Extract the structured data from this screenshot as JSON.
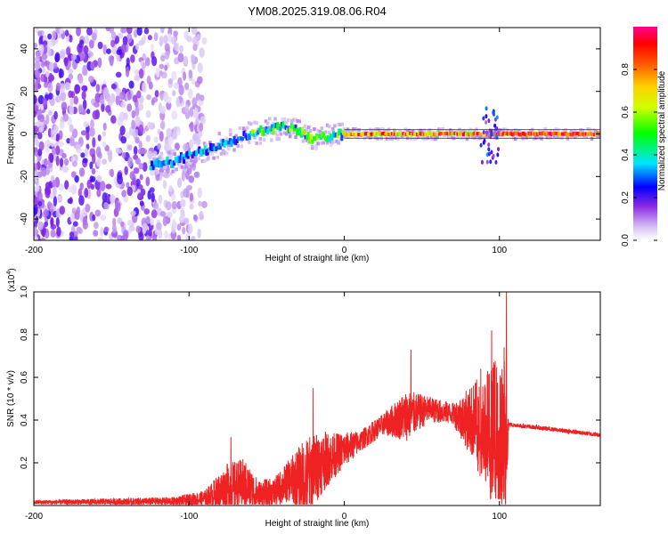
{
  "title": "YM08.2025.319.08.06.R04",
  "chart_data": [
    {
      "type": "heatmap",
      "xlabel": "Height of straight line (km)",
      "ylabel": "Frequency (Hz)",
      "xlim": [
        -200,
        165
      ],
      "ylim": [
        -50,
        50
      ],
      "xticks": [
        -200,
        -100,
        0,
        100
      ],
      "yticks": [
        -40,
        -20,
        0,
        20,
        40
      ],
      "colorbar": {
        "label": "Normalized spectral amplitude",
        "range": [
          0,
          1
        ],
        "ticks": [
          "0.0",
          "0.2",
          "0.4",
          "0.6",
          "0.8"
        ],
        "colormap": [
          "#ffffff",
          "#c9a8f2",
          "#7a00e0",
          "#0000ff",
          "#00e0ff",
          "#00ff00",
          "#ffff00",
          "#ff8000",
          "#ff0000",
          "#ff00a0"
        ]
      },
      "ridge": [
        {
          "x": -125,
          "f": -15
        },
        {
          "x": -110,
          "f": -13
        },
        {
          "x": -95,
          "f": -9
        },
        {
          "x": -80,
          "f": -5
        },
        {
          "x": -65,
          "f": -1
        },
        {
          "x": -50,
          "f": 2
        },
        {
          "x": -40,
          "f": 3.5
        },
        {
          "x": -30,
          "f": 2
        },
        {
          "x": -25,
          "f": -1
        },
        {
          "x": -20,
          "f": -2.5
        },
        {
          "x": -10,
          "f": -1
        },
        {
          "x": 0,
          "f": 0
        },
        {
          "x": 50,
          "f": 0
        },
        {
          "x": 90,
          "f": 0
        },
        {
          "x": 100,
          "f": 0
        },
        {
          "x": 165,
          "f": 0
        }
      ]
    },
    {
      "type": "line",
      "xlabel": "Height of straight line (km)",
      "ylabel": "SNR (10 * v/v)",
      "yscale_label": "(x10",
      "yscale_exp": "4",
      "yscale_close": ")",
      "xlim": [
        -200,
        165
      ],
      "ylim": [
        0,
        1.0
      ],
      "xticks": [
        -200,
        -100,
        0,
        100
      ],
      "yticks": [
        "0.2",
        "0.4",
        "0.6",
        "0.8",
        "1.0"
      ],
      "color": "#ee2222",
      "envelope": [
        {
          "x": -200,
          "base": 0.015,
          "amp": 0.01
        },
        {
          "x": -110,
          "base": 0.02,
          "amp": 0.02
        },
        {
          "x": -90,
          "base": 0.03,
          "amp": 0.04
        },
        {
          "x": -75,
          "base": 0.08,
          "amp": 0.12
        },
        {
          "x": -65,
          "base": 0.1,
          "amp": 0.12
        },
        {
          "x": -55,
          "base": 0.05,
          "amp": 0.07
        },
        {
          "x": -45,
          "base": 0.06,
          "amp": 0.07
        },
        {
          "x": -35,
          "base": 0.12,
          "amp": 0.1
        },
        {
          "x": -25,
          "base": 0.12,
          "amp": 0.2
        },
        {
          "x": -15,
          "base": 0.2,
          "amp": 0.15
        },
        {
          "x": -5,
          "base": 0.24,
          "amp": 0.1
        },
        {
          "x": 10,
          "base": 0.3,
          "amp": 0.05
        },
        {
          "x": 25,
          "base": 0.38,
          "amp": 0.05
        },
        {
          "x": 40,
          "base": 0.42,
          "amp": 0.12
        },
        {
          "x": 55,
          "base": 0.45,
          "amp": 0.06
        },
        {
          "x": 70,
          "base": 0.43,
          "amp": 0.05
        },
        {
          "x": 80,
          "base": 0.4,
          "amp": 0.15
        },
        {
          "x": 90,
          "base": 0.38,
          "amp": 0.25
        },
        {
          "x": 100,
          "base": 0.35,
          "amp": 0.35
        },
        {
          "x": 104,
          "base": 0.3,
          "amp": 0.4
        },
        {
          "x": 106,
          "base": 0.38,
          "amp": 0.01
        },
        {
          "x": 130,
          "base": 0.36,
          "amp": 0.01
        },
        {
          "x": 165,
          "base": 0.33,
          "amp": 0.01
        }
      ],
      "peaks": [
        {
          "x": -73,
          "y": 0.32
        },
        {
          "x": -20,
          "y": 0.55
        },
        {
          "x": 43,
          "y": 0.73
        },
        {
          "x": 88,
          "y": 0.64
        },
        {
          "x": 95,
          "y": 0.82
        },
        {
          "x": 97,
          "y": 0.63
        },
        {
          "x": 103,
          "y": 0.74
        },
        {
          "x": 104.5,
          "y": 1.0
        }
      ]
    }
  ]
}
